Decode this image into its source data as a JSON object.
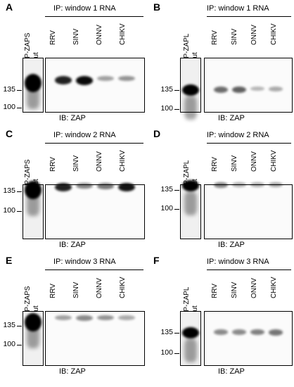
{
  "common": {
    "ib_label": "IB: ZAP",
    "lanes": [
      "RRV",
      "SINV",
      "ONNV",
      "CHIKV"
    ],
    "input_label": "input",
    "mw": {
      "high": "135",
      "low": "100"
    }
  },
  "panels": [
    {
      "letter": "A",
      "construct": "RFP-ZAPS",
      "ip": "IP: window 1 RNA",
      "input_strength": 1.0,
      "lane_strengths": [
        0.85,
        0.95,
        0.25,
        0.3
      ]
    },
    {
      "letter": "B",
      "construct": "RFP-ZAPL",
      "ip": "IP: window 1 RNA",
      "input_strength": 1.0,
      "lane_strengths": [
        0.5,
        0.55,
        0.15,
        0.2
      ]
    },
    {
      "letter": "C",
      "construct": "RFP-ZAPS",
      "ip": "IP: window 2 RNA",
      "input_strength": 1.0,
      "lane_strengths": [
        0.85,
        0.4,
        0.45,
        0.9
      ]
    },
    {
      "letter": "D",
      "construct": "RFP-ZAPL",
      "ip": "IP: window 2 RNA",
      "input_strength": 1.0,
      "lane_strengths": [
        0.4,
        0.2,
        0.2,
        0.25
      ]
    },
    {
      "letter": "E",
      "construct": "RFP-ZAPS",
      "ip": "IP: window 3 RNA",
      "input_strength": 1.0,
      "lane_strengths": [
        0.25,
        0.35,
        0.3,
        0.2
      ]
    },
    {
      "letter": "F",
      "construct": "RFP-ZAPL",
      "ip": "IP: window 3 RNA",
      "input_strength": 1.0,
      "lane_strengths": [
        0.35,
        0.35,
        0.4,
        0.45
      ]
    }
  ]
}
